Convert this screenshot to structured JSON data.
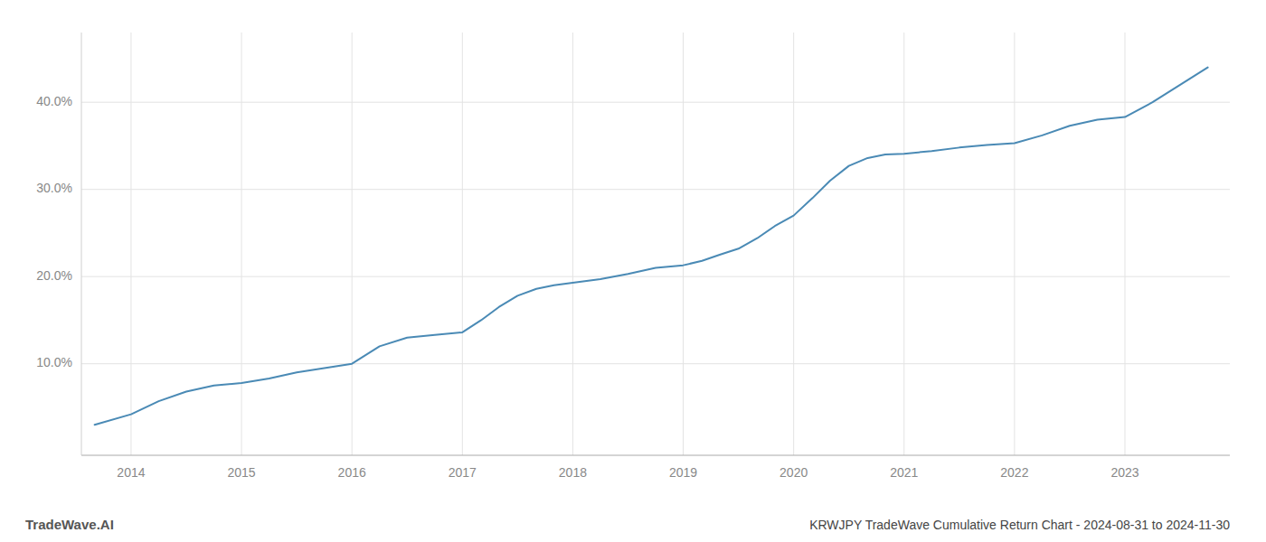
{
  "chart_data": {
    "type": "line",
    "title": "KRWJPY TradeWave Cumulative Return Chart - 2024-08-31 to 2024-11-30",
    "annotations": [
      "TradeWave.AI"
    ],
    "color": "#4a8ab5",
    "grid": true,
    "x": [
      2013.67,
      2014.0,
      2014.25,
      2014.5,
      2014.75,
      2015.0,
      2015.25,
      2015.5,
      2015.75,
      2016.0,
      2016.25,
      2016.5,
      2016.75,
      2017.0,
      2017.17,
      2017.33,
      2017.5,
      2017.67,
      2017.83,
      2018.0,
      2018.25,
      2018.5,
      2018.75,
      2019.0,
      2019.17,
      2019.33,
      2019.5,
      2019.67,
      2019.83,
      2020.0,
      2020.17,
      2020.33,
      2020.5,
      2020.67,
      2020.83,
      2021.0,
      2021.25,
      2021.5,
      2021.75,
      2022.0,
      2022.25,
      2022.5,
      2022.75,
      2023.0,
      2023.25,
      2023.5,
      2023.75
    ],
    "values": [
      0.03,
      0.042,
      0.057,
      0.068,
      0.075,
      0.078,
      0.083,
      0.09,
      0.095,
      0.1,
      0.12,
      0.13,
      0.133,
      0.136,
      0.15,
      0.165,
      0.178,
      0.186,
      0.19,
      0.193,
      0.197,
      0.203,
      0.21,
      0.213,
      0.218,
      0.225,
      0.232,
      0.244,
      0.258,
      0.27,
      0.29,
      0.31,
      0.327,
      0.336,
      0.34,
      0.341,
      0.344,
      0.348,
      0.351,
      0.353,
      0.362,
      0.373,
      0.38,
      0.383,
      0.4,
      0.42,
      0.44
    ],
    "xlim": [
      2013.55,
      2023.95
    ],
    "xticks": [
      2014,
      2015,
      2016,
      2017,
      2018,
      2019,
      2020,
      2021,
      2022,
      2023
    ],
    "ylim": [
      -0.005,
      0.48
    ],
    "yticks": [
      {
        "value": 0.1,
        "label": "10.0%"
      },
      {
        "value": 0.2,
        "label": "20.0%"
      },
      {
        "value": 0.3,
        "label": "30.0%"
      },
      {
        "value": 0.4,
        "label": "40.0%"
      }
    ]
  }
}
